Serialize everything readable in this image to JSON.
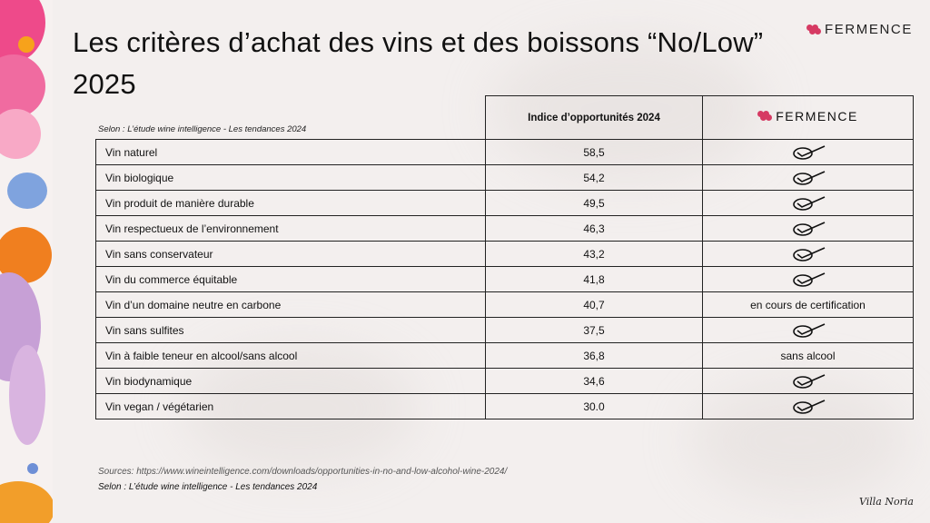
{
  "title": "Les critères d’achat des vins et des boissons “No/Low” 2025",
  "brand": "FERMENCE",
  "caption": "Selon : L’étude wine intelligence - Les tendances 2024",
  "table": {
    "header_col2": "Indice d’opportunités 2024",
    "header_col3_brand": "FERMENCE",
    "rows": [
      {
        "label": "Vin naturel",
        "value": "58,5",
        "status": "check"
      },
      {
        "label": "Vin biologique",
        "value": "54,2",
        "status": "check"
      },
      {
        "label": "Vin produit de manière durable",
        "value": "49,5",
        "status": "check"
      },
      {
        "label": "Vin respectueux de l’environnement",
        "value": "46,3",
        "status": "check"
      },
      {
        "label": "Vin sans conservateur",
        "value": "43,2",
        "status": "check"
      },
      {
        "label": "Vin du commerce équitable",
        "value": "41,8",
        "status": "check"
      },
      {
        "label": "Vin d’un domaine neutre en carbone",
        "value": "40,7",
        "status": "en cours de certification"
      },
      {
        "label": "Vin sans sulfites",
        "value": "37,5",
        "status": "check"
      },
      {
        "label": "Vin à faible teneur en alcool/sans alcool",
        "value": "36,8",
        "status": "sans alcool"
      },
      {
        "label": "Vin biodynamique",
        "value": "34,6",
        "status": "check"
      },
      {
        "label": "Vin vegan / végétarien",
        "value": "30.0",
        "status": "check"
      }
    ]
  },
  "sources": "Sources: https://www.wineintelligence.com/downloads/opportunities-in-no-and-low-alcohol-wine-2024/",
  "sources_line2": "Selon : L’étude wine intelligence - Les tendances 2024",
  "signature": "Villa Noria",
  "colors": {
    "accent": "#d63a63",
    "text": "#111111",
    "background": "#f3efee"
  }
}
